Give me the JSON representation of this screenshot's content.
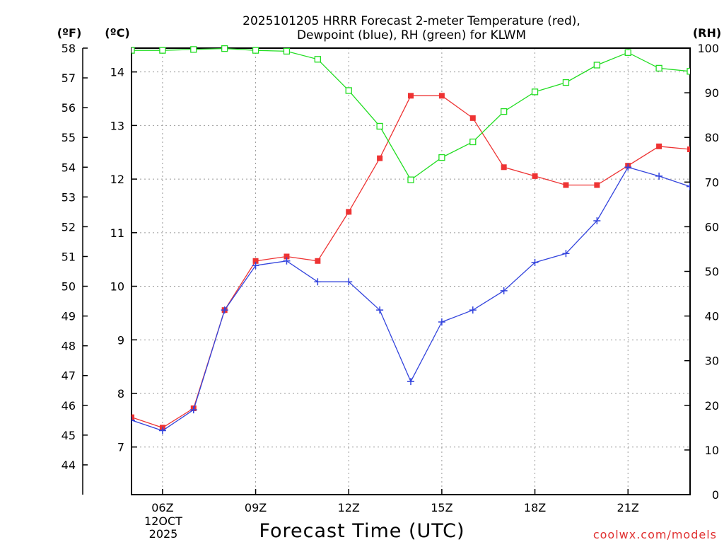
{
  "chart_data": {
    "type": "line",
    "title_line1": "2025101205 HRRR Forecast 2-meter Temperature (red),",
    "title_line2": "Dewpoint (blue), RH (green) for KLWM",
    "xlabel": "Forecast Time (UTC)",
    "watermark": "coolwx.com/models",
    "axis_unit_f": "(ºF)",
    "axis_unit_c": "(ºC)",
    "axis_unit_rh": "(RH)",
    "x_hours": [
      5,
      6,
      7,
      8,
      9,
      10,
      11,
      12,
      13,
      14,
      15,
      16,
      17,
      18,
      19,
      20,
      21,
      22,
      23
    ],
    "xlim": [
      5,
      23
    ],
    "x_ticks": [
      {
        "hour": 6,
        "label": "06Z"
      },
      {
        "hour": 9,
        "label": "09Z"
      },
      {
        "hour": 12,
        "label": "12Z"
      },
      {
        "hour": 15,
        "label": "15Z"
      },
      {
        "hour": 18,
        "label": "18Z"
      },
      {
        "hour": 21,
        "label": "21Z"
      }
    ],
    "date_label_line1": "12OCT",
    "date_label_line2": "2025",
    "y_left_f": {
      "range": [
        43,
        58
      ],
      "ticks": [
        44,
        45,
        46,
        47,
        48,
        49,
        50,
        51,
        52,
        53,
        54,
        55,
        56,
        57,
        58
      ]
    },
    "y_left_c": {
      "ticks": [
        7,
        8,
        9,
        10,
        11,
        12,
        13,
        14
      ]
    },
    "y_right_rh": {
      "range": [
        0,
        100
      ],
      "ticks": [
        0,
        10,
        20,
        30,
        40,
        50,
        60,
        70,
        80,
        90,
        100
      ]
    },
    "series": [
      {
        "name": "Temperature",
        "unit": "F",
        "color": "#ee3333",
        "marker": "filled-square",
        "values": [
          45.6,
          45.25,
          45.9,
          49.2,
          50.85,
          51.0,
          50.85,
          52.5,
          54.3,
          56.4,
          56.4,
          55.65,
          54.0,
          53.7,
          53.4,
          53.4,
          54.05,
          54.7,
          54.6
        ]
      },
      {
        "name": "Dewpoint",
        "unit": "F",
        "color": "#3344dd",
        "marker": "plus",
        "values": [
          45.5,
          45.15,
          45.85,
          49.2,
          50.7,
          50.85,
          50.15,
          50.15,
          49.2,
          46.8,
          48.8,
          49.2,
          49.85,
          50.8,
          51.1,
          52.2,
          54.0,
          53.7,
          53.35
        ]
      },
      {
        "name": "RH",
        "unit": "%",
        "color": "#22dd22",
        "marker": "open-square",
        "values": [
          99.5,
          99.5,
          99.7,
          99.9,
          99.5,
          99.3,
          97.5,
          90.5,
          82.5,
          70.5,
          75.5,
          79.0,
          85.8,
          90.2,
          92.3,
          96.2,
          99.0,
          95.5,
          94.8
        ]
      }
    ]
  }
}
